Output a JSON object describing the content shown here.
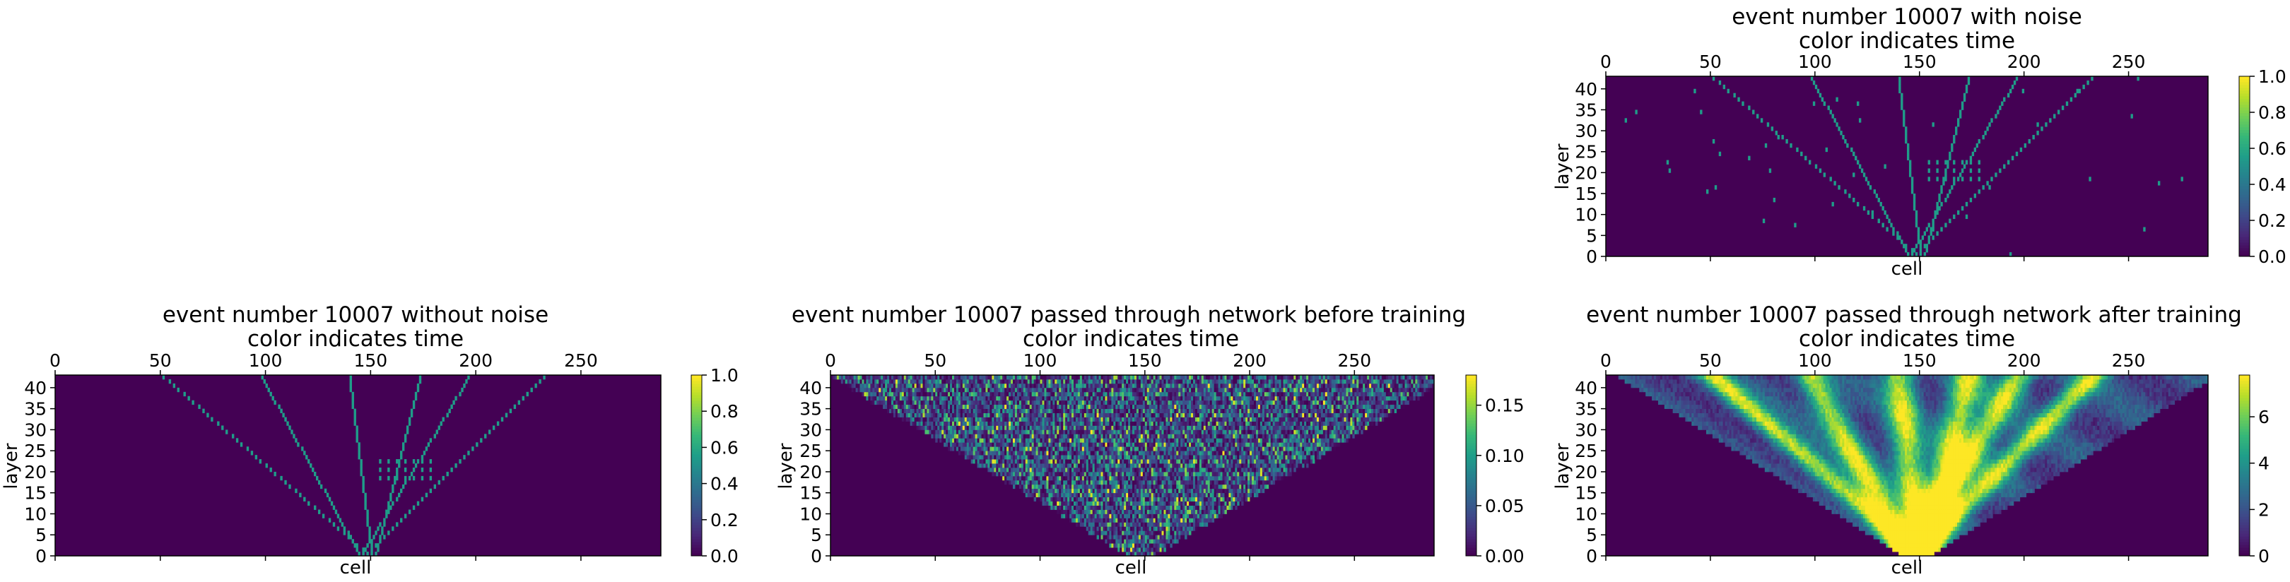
{
  "figure": {
    "colormap": [
      "#440154",
      "#482878",
      "#3e4a89",
      "#31688e",
      "#26828e",
      "#1f9e89",
      "#35b779",
      "#6ece58",
      "#b5de2b",
      "#fde725"
    ]
  },
  "chart_data": [
    {
      "type": "heatmap",
      "id": "with-noise",
      "title": "event number 10007 with noise",
      "subtitle": "color indicates time",
      "xlabel": "cell",
      "ylabel": "layer",
      "xlim": [
        0,
        288
      ],
      "ylim": [
        0,
        43
      ],
      "xticks": [
        0,
        50,
        100,
        150,
        200,
        250
      ],
      "yticks": [
        0,
        5,
        10,
        15,
        20,
        25,
        30,
        35,
        40
      ],
      "colorbar": {
        "range": [
          0,
          1.0
        ],
        "ticks": [
          "0.0",
          "0.2",
          "0.4",
          "0.6",
          "0.8",
          "1.0"
        ]
      },
      "pattern": "sparse hit tracks with isolated noise hits; hits ~0.5",
      "tracks": [
        [
          148,
          -2.3
        ],
        [
          144,
          -1.1
        ],
        [
          150,
          -0.25
        ],
        [
          152,
          0.5
        ],
        [
          146,
          1.2
        ],
        [
          148,
          2.0
        ]
      ],
      "noise": true
    },
    {
      "type": "heatmap",
      "id": "without-noise",
      "title": "event number 10007 without noise",
      "subtitle": "color indicates time",
      "xlabel": "cell",
      "ylabel": "layer",
      "xlim": [
        0,
        288
      ],
      "ylim": [
        0,
        43
      ],
      "xticks": [
        0,
        50,
        100,
        150,
        200,
        250
      ],
      "yticks": [
        0,
        5,
        10,
        15,
        20,
        25,
        30,
        35,
        40
      ],
      "colorbar": {
        "range": [
          0,
          1.0
        ],
        "ticks": [
          "0.0",
          "0.2",
          "0.4",
          "0.6",
          "0.8",
          "1.0"
        ]
      },
      "pattern": "sparse hit tracks; hits ~0.5",
      "tracks": [
        [
          148,
          -2.3
        ],
        [
          144,
          -1.1
        ],
        [
          150,
          -0.25
        ],
        [
          152,
          0.5
        ],
        [
          146,
          1.2
        ],
        [
          148,
          2.0
        ]
      ],
      "noise": false
    },
    {
      "type": "heatmap",
      "id": "before-training",
      "title": "event number 10007 passed through network before training",
      "subtitle": "color indicates time",
      "xlabel": "cell",
      "ylabel": "layer",
      "xlim": [
        0,
        288
      ],
      "ylim": [
        0,
        43
      ],
      "xticks": [
        0,
        50,
        100,
        150,
        200,
        250
      ],
      "yticks": [
        0,
        5,
        10,
        15,
        20,
        25,
        30,
        35,
        40
      ],
      "colorbar": {
        "range": [
          0,
          0.18
        ],
        "ticks": [
          "0.00",
          "0.05",
          "0.10",
          "0.15"
        ]
      },
      "pattern": "random values 0-0.18 inside an inverted-triangle region (apex near cell 148, layer 0)"
    },
    {
      "type": "heatmap",
      "id": "after-training",
      "title": "event number 10007 passed through network after training",
      "subtitle": "color indicates time",
      "xlabel": "cell",
      "ylabel": "layer",
      "xlim": [
        0,
        288
      ],
      "ylim": [
        0,
        43
      ],
      "xticks": [
        0,
        50,
        100,
        150,
        200,
        250
      ],
      "yticks": [
        0,
        5,
        10,
        15,
        20,
        25,
        30,
        35,
        40
      ],
      "colorbar": {
        "range": [
          0,
          7.8
        ],
        "ticks": [
          "0",
          "2",
          "4",
          "6"
        ]
      },
      "pattern": "smooth bands 0-7.8 inside inverted triangle, brighter near track trajectories"
    }
  ]
}
